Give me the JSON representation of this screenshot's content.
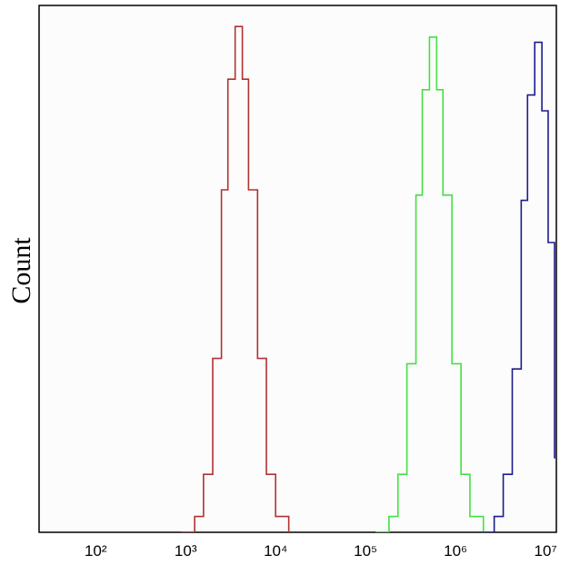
{
  "chart_data": {
    "type": "line",
    "ylabel": "Count",
    "xscale": "log",
    "xlim": [
      23.5,
      13200000
    ],
    "ylim": [
      0,
      100
    ],
    "xticks": [
      {
        "value": 100,
        "label": "10²"
      },
      {
        "value": 1000,
        "label": "10³"
      },
      {
        "value": 10000,
        "label": "10⁴"
      },
      {
        "value": 100000,
        "label": "10⁵"
      },
      {
        "value": 1000000,
        "label": "10⁶"
      },
      {
        "value": 10000000,
        "label": "10⁷"
      }
    ],
    "series": [
      {
        "color": "#b03232",
        "x": [
          890,
          1260,
          1580,
          2000,
          2500,
          2950,
          3550,
          4270,
          5000,
          6300,
          7900,
          10000,
          14000
        ],
        "values": [
          0,
          3,
          11,
          33,
          65,
          86,
          96,
          86,
          65,
          33,
          11,
          3,
          0
        ]
      },
      {
        "color": "#44e044",
        "x": [
          129000,
          182000,
          229000,
          288000,
          363000,
          427000,
          513000,
          617000,
          724000,
          912000,
          1150000,
          1445000,
          2040000
        ],
        "values": [
          0,
          3,
          11,
          32,
          64,
          84,
          94,
          84,
          64,
          32,
          11,
          3,
          0
        ]
      },
      {
        "color": "#1c1c8c",
        "x": [
          1900000,
          2690000,
          3390000,
          4270000,
          5370000,
          6310000,
          7590000,
          9120000,
          10700000,
          12600000
        ],
        "values": [
          0,
          3,
          11,
          31,
          63,
          83,
          93,
          80,
          55,
          14
        ]
      }
    ]
  }
}
